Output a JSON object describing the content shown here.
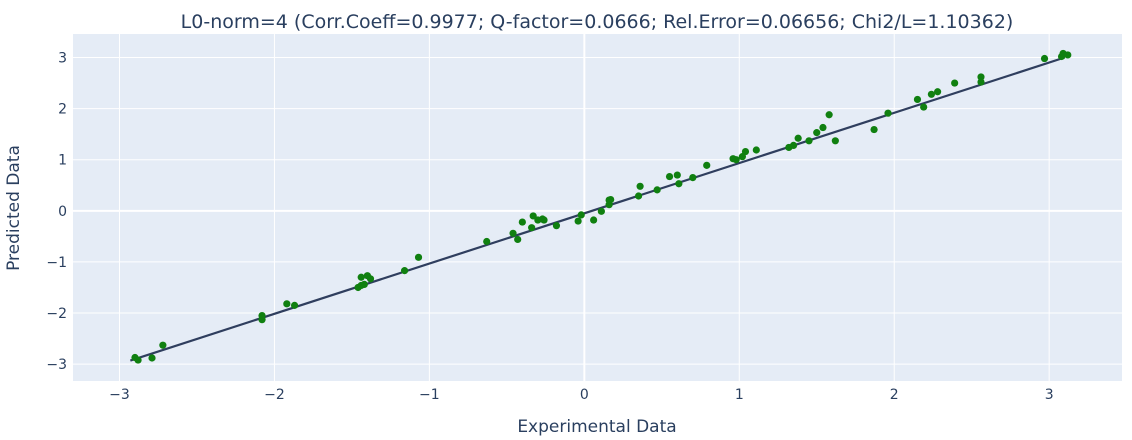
{
  "chart_data": {
    "type": "scatter",
    "title": "L0-norm=4 (Corr.Coeff=0.9977; Q-factor=0.0666; Rel.Error=0.06656; Chi2/L=1.10362)",
    "xlabel": "Experimental Data",
    "ylabel": "Predicted Data",
    "xlim": [
      -3.3,
      3.47
    ],
    "ylim": [
      -3.33,
      3.46
    ],
    "grid": true,
    "colors": {
      "background": "#e5ecf6",
      "points": "#108010",
      "line": "#2f3e5e",
      "grid": "#ffffff"
    },
    "x_ticks": [
      {
        "value": -3,
        "label": "−3"
      },
      {
        "value": -2,
        "label": "−2"
      },
      {
        "value": -1,
        "label": "−1"
      },
      {
        "value": 0,
        "label": "0"
      },
      {
        "value": 1,
        "label": "1"
      },
      {
        "value": 2,
        "label": "2"
      },
      {
        "value": 3,
        "label": "3"
      }
    ],
    "y_ticks": [
      {
        "value": 3,
        "label": "3"
      },
      {
        "value": 2,
        "label": "2"
      },
      {
        "value": 1,
        "label": "1"
      },
      {
        "value": 0,
        "label": "0"
      },
      {
        "value": -1,
        "label": "−1"
      },
      {
        "value": -2,
        "label": "−2"
      },
      {
        "value": -3,
        "label": "−3"
      }
    ],
    "series": [
      {
        "type": "scatter",
        "x": [
          -2.9,
          -2.88,
          -2.79,
          -2.72,
          -2.08,
          -2.08,
          -1.92,
          -1.87,
          -1.46,
          -1.44,
          -1.44,
          -1.42,
          -1.4,
          -1.38,
          -1.16,
          -1.07,
          -0.63,
          -0.46,
          -0.43,
          -0.4,
          -0.34,
          -0.33,
          -0.3,
          -0.27,
          -0.26,
          -0.18,
          -0.04,
          -0.02,
          0.06,
          0.11,
          0.16,
          0.16,
          0.17,
          0.35,
          0.36,
          0.47,
          0.55,
          0.6,
          0.61,
          0.7,
          0.79,
          0.96,
          0.98,
          1.02,
          1.04,
          1.11,
          1.32,
          1.35,
          1.38,
          1.45,
          1.5,
          1.54,
          1.58,
          1.62,
          1.87,
          1.96,
          2.15,
          2.19,
          2.24,
          2.28,
          2.39,
          2.56,
          2.56,
          2.97,
          3.08,
          3.09,
          3.12
        ],
        "y": [
          -2.87,
          -2.92,
          -2.88,
          -2.63,
          -2.05,
          -2.13,
          -1.82,
          -1.85,
          -1.5,
          -1.3,
          -1.46,
          -1.44,
          -1.27,
          -1.33,
          -1.17,
          -0.91,
          -0.6,
          -0.44,
          -0.56,
          -0.22,
          -0.33,
          -0.1,
          -0.18,
          -0.16,
          -0.18,
          -0.29,
          -0.2,
          -0.08,
          -0.18,
          -0.01,
          0.12,
          0.21,
          0.22,
          0.29,
          0.48,
          0.41,
          0.67,
          0.7,
          0.53,
          0.65,
          0.89,
          1.02,
          1.0,
          1.06,
          1.16,
          1.19,
          1.24,
          1.28,
          1.42,
          1.37,
          1.53,
          1.63,
          1.88,
          1.37,
          1.59,
          1.91,
          2.18,
          2.03,
          2.28,
          2.33,
          2.5,
          2.52,
          2.62,
          2.98,
          3.02,
          3.08,
          3.05
        ]
      },
      {
        "type": "line",
        "x": [
          -2.93,
          3.1
        ],
        "y": [
          -2.93,
          3.0
        ]
      }
    ]
  }
}
